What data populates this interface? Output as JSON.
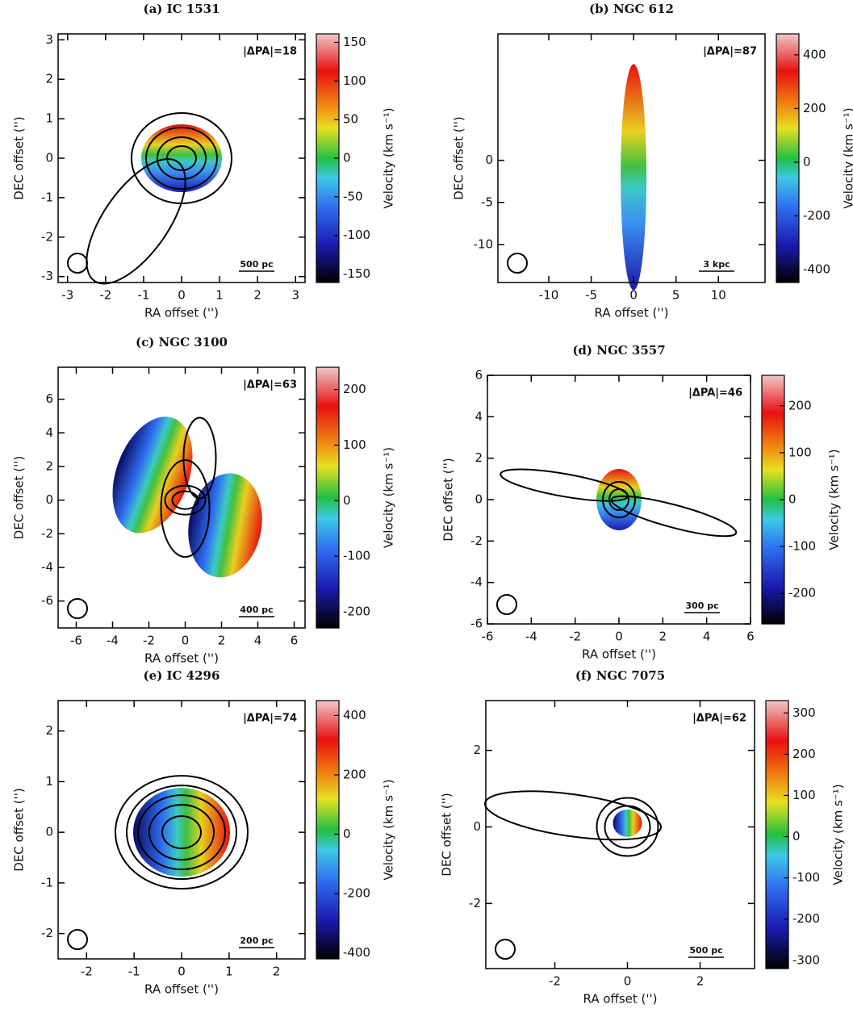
{
  "chart_data": [
    {
      "type": "velocity-map",
      "title": "(a) IC 1531",
      "xlabel": "RA offset ('')",
      "ylabel": "DEC offset ('')",
      "xlim": [
        -3.25,
        3.25
      ],
      "ylim": [
        -3.15,
        3.15
      ],
      "xticks": [
        -3,
        -2,
        -1,
        0,
        1,
        2,
        3
      ],
      "yticks": [
        -3,
        -2,
        -1,
        0,
        1,
        2,
        3
      ],
      "annotation": "|ΔPA|=18",
      "scale_bar": "500 pc",
      "colorbar": {
        "label": "Velocity (km s⁻¹)",
        "lim": [
          -161,
          161
        ],
        "ticks": [
          -150,
          -100,
          -50,
          0,
          50,
          100,
          150
        ]
      }
    },
    {
      "type": "velocity-map",
      "title": "(b) NGC 612",
      "xlabel": "RA offset ('')",
      "ylabel": "DEC offset ('')",
      "xlim": [
        -16,
        15.5
      ],
      "ylim": [
        -14.5,
        15
      ],
      "xticks": [
        -10,
        -5,
        0,
        5,
        10
      ],
      "yticks": [
        -10,
        -5,
        0
      ],
      "annotation": "|ΔPA|=87",
      "scale_bar": "3 kpc",
      "colorbar": {
        "label": "Velocity (km s⁻¹)",
        "lim": [
          -448,
          478
        ],
        "ticks": [
          -400,
          -200,
          0,
          200,
          400
        ]
      }
    },
    {
      "type": "velocity-map",
      "title": "(c) NGC 3100",
      "xlabel": "RA offset ('')",
      "ylabel": "DEC offset ('')",
      "xlim": [
        -7,
        6.6
      ],
      "ylim": [
        -7.6,
        7.9
      ],
      "xticks": [
        -6,
        -4,
        -2,
        0,
        2,
        4,
        6
      ],
      "yticks": [
        -6,
        -4,
        -2,
        0,
        2,
        4,
        6
      ],
      "annotation": "|ΔPA|=63",
      "scale_bar": "400 pc",
      "colorbar": {
        "label": "Velocity (km s⁻¹)",
        "lim": [
          -229,
          240
        ],
        "ticks": [
          -200,
          -100,
          0,
          100,
          200
        ]
      }
    },
    {
      "type": "velocity-map",
      "title": "(d) NGC 3557",
      "xlabel": "RA offset ('')",
      "ylabel": "DEC offset ('')",
      "xlim": [
        -6,
        6
      ],
      "ylim": [
        -6,
        6
      ],
      "xticks": [
        -6,
        -4,
        -2,
        0,
        2,
        4,
        6
      ],
      "yticks": [
        -6,
        -4,
        -2,
        0,
        2,
        4,
        6
      ],
      "annotation": "|ΔPA|=46",
      "scale_bar": "300 pc",
      "colorbar": {
        "label": "Velocity (km s⁻¹)",
        "lim": [
          -265,
          265
        ],
        "ticks": [
          -200,
          -100,
          0,
          100,
          200
        ]
      }
    },
    {
      "type": "velocity-map",
      "title": "(e) IC 4296",
      "xlabel": "RA offset ('')",
      "ylabel": "DEC offset ('')",
      "xlim": [
        -2.6,
        2.6
      ],
      "ylim": [
        -2.5,
        2.6
      ],
      "xticks": [
        -2,
        -1,
        0,
        1,
        2
      ],
      "yticks": [
        -2,
        -1,
        0,
        1,
        2
      ],
      "annotation": "|ΔPA|=74",
      "scale_bar": "200 pc",
      "colorbar": {
        "label": "Velocity (km s⁻¹)",
        "lim": [
          -420,
          450
        ],
        "ticks": [
          -400,
          -200,
          0,
          200,
          400
        ]
      }
    },
    {
      "type": "velocity-map",
      "title": "(f) NGC 7075",
      "xlabel": "RA offset ('')",
      "ylabel": "DEC offset ('')",
      "xlim": [
        -3.9,
        3.5
      ],
      "ylim": [
        -3.7,
        3.3
      ],
      "xticks": [
        -2,
        0,
        2
      ],
      "yticks": [
        -2,
        0,
        2
      ],
      "annotation": "|ΔPA|=62",
      "scale_bar": "500 pc",
      "colorbar": {
        "label": "Velocity (km s⁻¹)",
        "lim": [
          -320,
          330
        ],
        "ticks": [
          -300,
          -200,
          -100,
          0,
          100,
          200,
          300
        ]
      }
    }
  ]
}
